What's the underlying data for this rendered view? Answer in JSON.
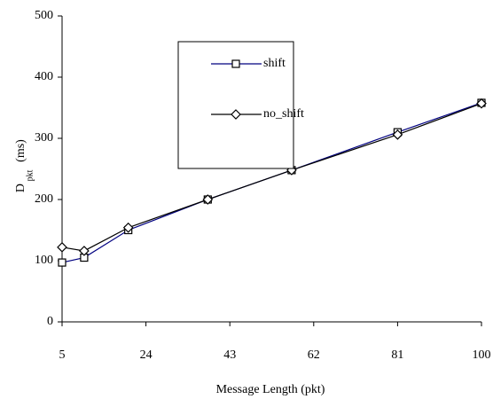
{
  "chart_data": {
    "type": "line",
    "x_label": "Message Length (pkt)",
    "y_label": {
      "main": "D",
      "sub": "pkt",
      "unit": "(ms)"
    },
    "x": [
      5,
      10,
      20,
      38,
      57,
      81,
      100
    ],
    "series": [
      {
        "name": "shift",
        "color": "#000080",
        "marker": "square",
        "values": [
          97,
          105,
          150,
          200,
          248,
          310,
          358
        ]
      },
      {
        "name": "no_shift",
        "color": "#000000",
        "marker": "diamond",
        "values": [
          122,
          116,
          154,
          200,
          248,
          306,
          357
        ]
      }
    ],
    "xlim": [
      5,
      100
    ],
    "xticks": [
      5,
      24,
      43,
      62,
      81,
      100
    ],
    "ylim": [
      0,
      500
    ],
    "yticks": [
      0,
      100,
      200,
      300,
      400,
      500
    ],
    "grid": false,
    "legend": "upper-left"
  }
}
